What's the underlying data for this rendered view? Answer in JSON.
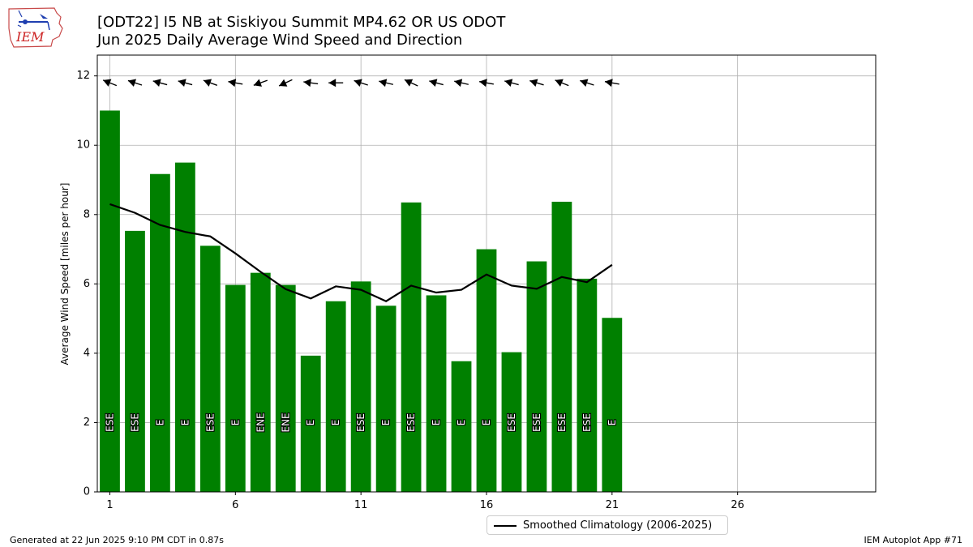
{
  "header": {
    "title_line1": "[ODT22] I5 NB at Siskiyou Summit MP4.62  OR US ODOT",
    "title_line2": "Jun 2025 Daily Average Wind Speed and Direction"
  },
  "logo": {
    "text": "IEM",
    "icon": "iem-iowa-logo"
  },
  "footer": {
    "generated": "Generated at 22 Jun 2025 9:10 PM CDT in 0.87s",
    "app": "IEM Autoplot App #71"
  },
  "legend": {
    "label": "Smoothed Climatology (2006-2025)"
  },
  "colors": {
    "bar": "#008000",
    "line": "#000000",
    "grid": "#b0b0b0"
  },
  "chart_data": {
    "type": "bar",
    "ylabel": "Average Wind Speed [miles per hour]",
    "xlim": [
      0.5,
      31.5
    ],
    "ylim": [
      0,
      12.6
    ],
    "xticks": [
      1,
      6,
      11,
      16,
      21,
      26
    ],
    "yticks": [
      0,
      2,
      4,
      6,
      8,
      10,
      12
    ],
    "grid": true,
    "legend_position": "bottom-center",
    "days": [
      1,
      2,
      3,
      4,
      5,
      6,
      7,
      8,
      9,
      10,
      11,
      12,
      13,
      14,
      15,
      16,
      17,
      18,
      19,
      20,
      21
    ],
    "speed": [
      11.0,
      7.53,
      9.17,
      9.5,
      7.1,
      5.97,
      6.32,
      5.97,
      3.93,
      5.5,
      6.07,
      5.37,
      8.35,
      5.67,
      3.77,
      7.0,
      4.03,
      6.65,
      8.37,
      6.15,
      5.02
    ],
    "direction": [
      "ESE",
      "ESE",
      "E",
      "E",
      "ESE",
      "E",
      "ENE",
      "ENE",
      "E",
      "E",
      "ESE",
      "E",
      "ESE",
      "E",
      "E",
      "E",
      "ESE",
      "ESE",
      "ESE",
      "ESE",
      "E"
    ],
    "direction_deg": [
      112,
      108,
      105,
      105,
      110,
      100,
      70,
      65,
      98,
      90,
      108,
      103,
      115,
      105,
      103,
      100,
      105,
      107,
      112,
      108,
      100
    ],
    "climatology": {
      "name": "Smoothed Climatology (2006-2025)",
      "values": [
        8.3,
        8.05,
        7.7,
        7.5,
        7.37,
        6.88,
        6.35,
        5.85,
        5.58,
        5.93,
        5.83,
        5.5,
        5.95,
        5.75,
        5.83,
        6.27,
        5.95,
        5.86,
        6.2,
        6.05,
        6.55
      ]
    }
  }
}
